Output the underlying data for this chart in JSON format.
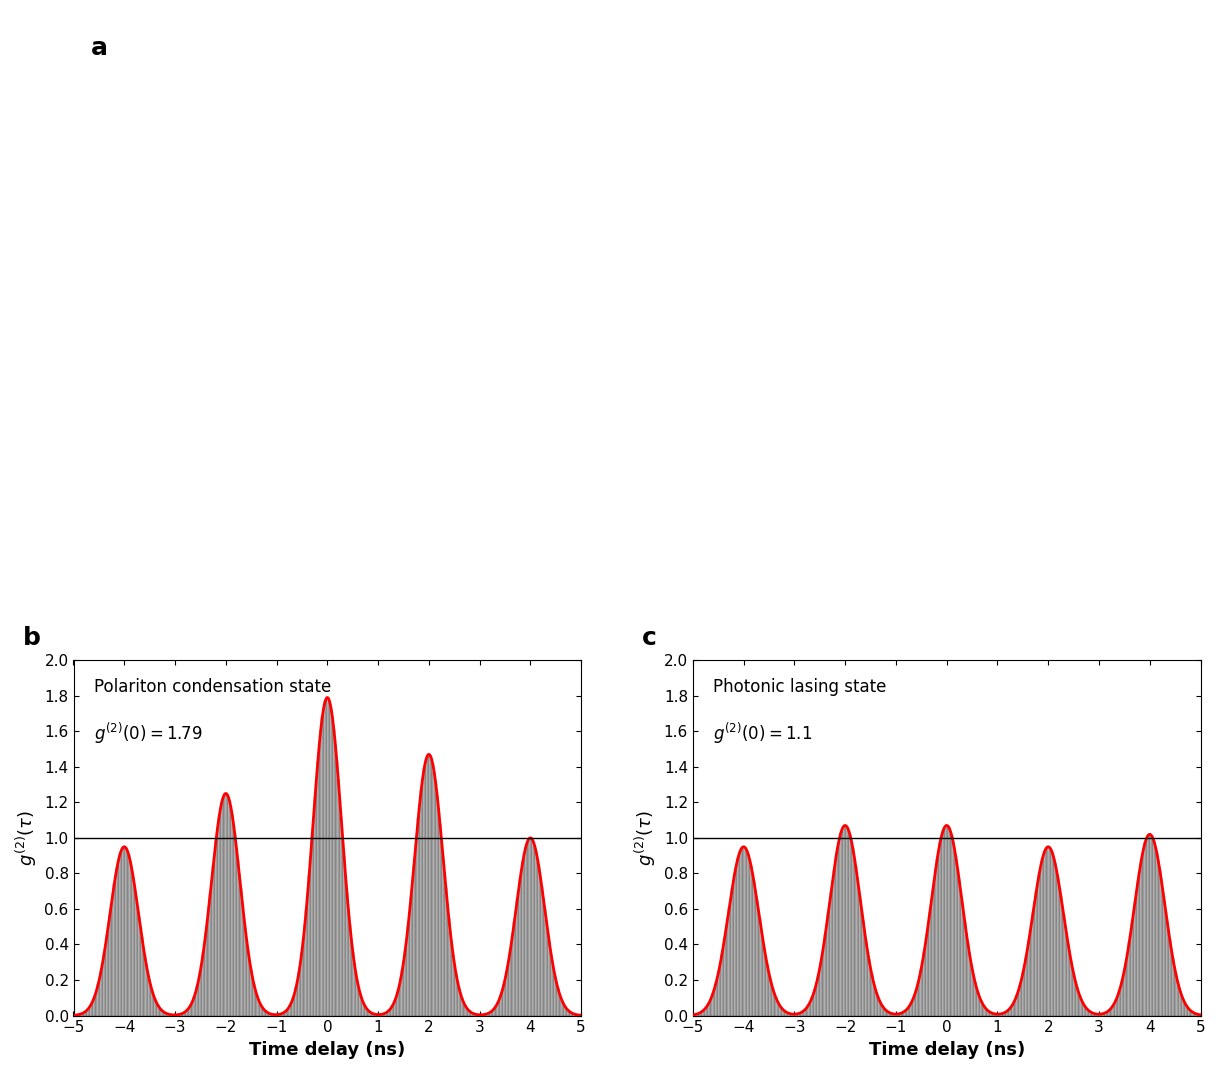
{
  "panel_b": {
    "title": "Polariton condensation state",
    "g2_label": "$g^{(2)}(0) = 1.79$",
    "xlabel": "Time delay (ns)",
    "ylabel": "$g^{(2)}(\\tau)$",
    "xlim": [
      -5,
      5
    ],
    "ylim": [
      0,
      2.0
    ],
    "yticks": [
      0.0,
      0.2,
      0.4,
      0.6,
      0.8,
      1.0,
      1.2,
      1.4,
      1.6,
      1.8,
      2.0
    ],
    "xticks": [
      -5,
      -4,
      -3,
      -2,
      -1,
      0,
      1,
      2,
      3,
      4,
      5
    ],
    "peak_positions": [
      -4,
      -2,
      0,
      2,
      4
    ],
    "peak_amplitudes": [
      0.95,
      1.25,
      1.79,
      1.47,
      1.0
    ],
    "line_color": "#FF0000",
    "fill_color": "#C8C8C8",
    "fill_edge_color": "#505050",
    "hline_y": 1.0,
    "hline_color": "#000000",
    "peak_sigma": 0.28,
    "n_bars": 350
  },
  "panel_c": {
    "title": "Photonic lasing state",
    "g2_label": "$g^{(2)}(0) = 1.1$",
    "xlabel": "Time delay (ns)",
    "ylabel": "$g^{(2)}(\\tau)$",
    "xlim": [
      -5,
      5
    ],
    "ylim": [
      0,
      2.0
    ],
    "yticks": [
      0.0,
      0.2,
      0.4,
      0.6,
      0.8,
      1.0,
      1.2,
      1.4,
      1.6,
      1.8,
      2.0
    ],
    "xticks": [
      -5,
      -4,
      -3,
      -2,
      -1,
      0,
      1,
      2,
      3,
      4,
      5
    ],
    "peak_positions": [
      -4,
      -2,
      0,
      2,
      4
    ],
    "peak_amplitudes": [
      0.95,
      1.07,
      1.07,
      0.95,
      1.02
    ],
    "line_color": "#FF0000",
    "fill_color": "#C8C8C8",
    "fill_edge_color": "#505050",
    "hline_y": 1.0,
    "hline_color": "#000000",
    "peak_sigma": 0.3,
    "n_bars": 350
  },
  "label_fontsize": 13,
  "title_fontsize": 12,
  "tick_fontsize": 11,
  "panel_label_fontsize": 18,
  "background_color": "#FFFFFF"
}
